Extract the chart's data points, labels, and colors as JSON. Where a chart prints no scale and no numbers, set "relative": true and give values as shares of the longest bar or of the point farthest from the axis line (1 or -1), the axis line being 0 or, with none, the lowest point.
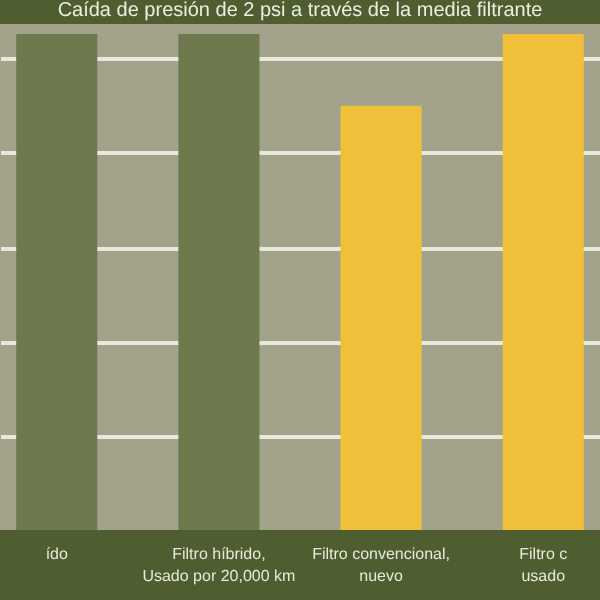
{
  "chart_data": {
    "type": "bar",
    "title": "Caída de presión de 2 psi a través de la media filtrante",
    "categories": [
      "ído",
      "Filtro híbrido,\nUsado por 20,000 km",
      "Filtro convencional,\nnuevo",
      "Filtro c\nusado"
    ],
    "values": [
      1,
      1,
      0.855,
      1
    ],
    "colors": [
      "#6e7a4e",
      "#6e7a4e",
      "#f0c03a",
      "#f0c03a"
    ],
    "relative": true,
    "grid": "y"
  }
}
